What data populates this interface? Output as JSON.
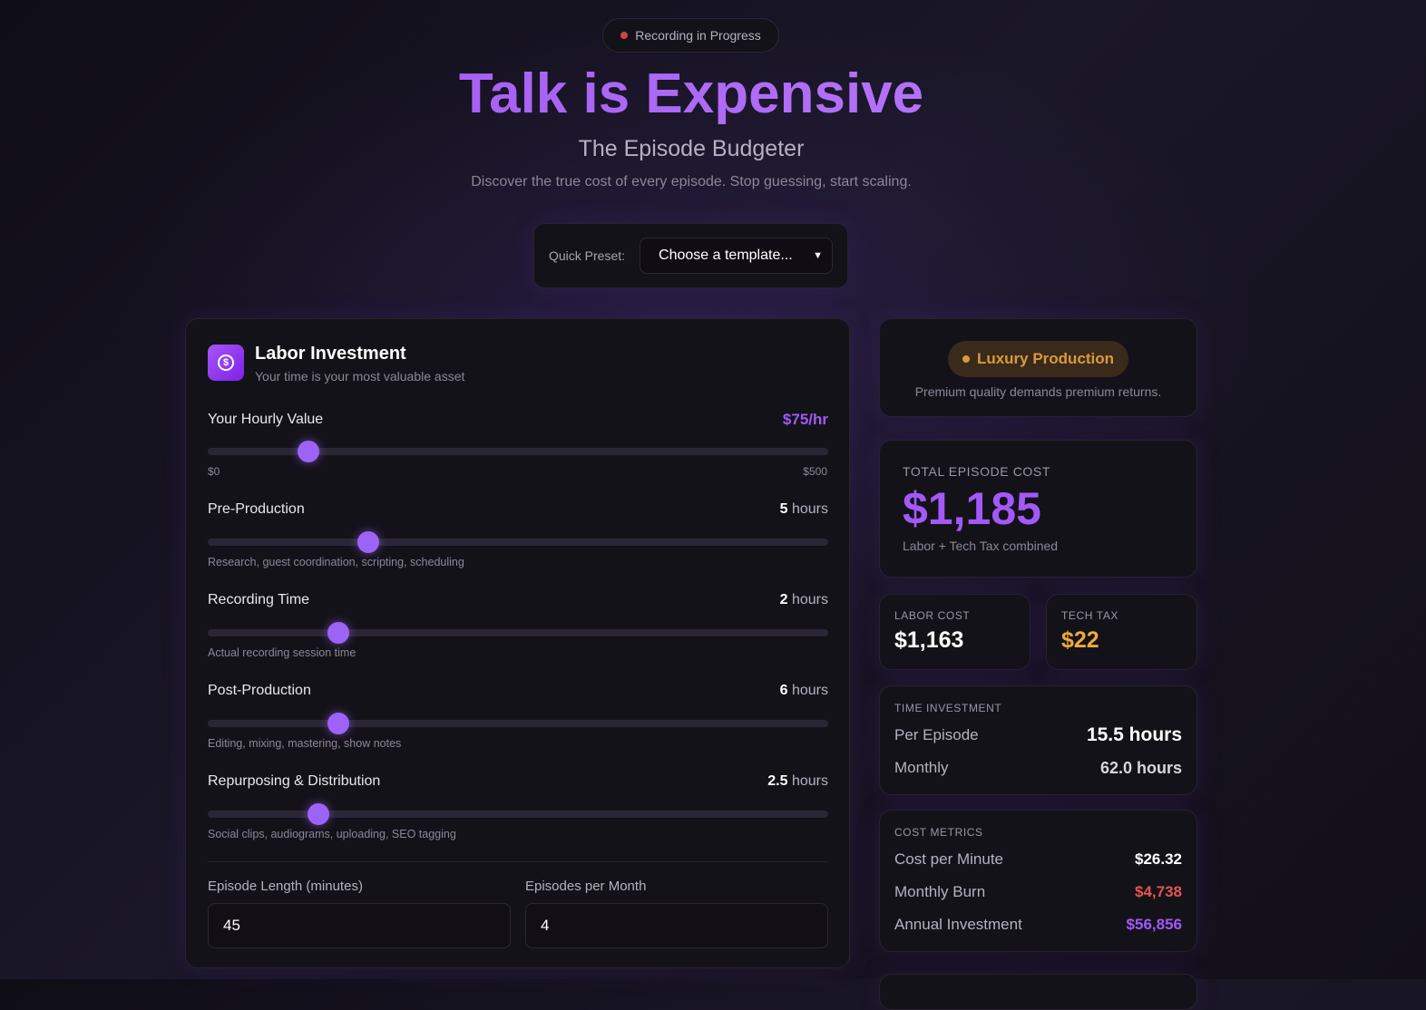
{
  "header": {
    "status": "Recording in Progress",
    "title": "Talk is Expensive",
    "subtitle": "The Episode Budgeter",
    "tagline": "Discover the true cost of every episode. Stop guessing, start scaling."
  },
  "preset": {
    "label": "Quick Preset:",
    "placeholder": "Choose a template..."
  },
  "labor": {
    "title": "Labor Investment",
    "subtitle": "Your time is your most valuable asset",
    "hourly": {
      "label": "Your Hourly Value",
      "value": 75,
      "value_label": "$75/hr",
      "min": {
        "value": 0,
        "label": "$0"
      },
      "max": {
        "value": 500,
        "label": "$500"
      }
    },
    "phases": [
      {
        "label": "Pre-Production",
        "value": 5,
        "unit": "hours",
        "min": 0,
        "max": 20,
        "hint": "Research, guest coordination, scripting, scheduling"
      },
      {
        "label": "Recording Time",
        "value": 2,
        "unit": "hours",
        "min": 0,
        "max": 10,
        "hint": "Actual recording session time"
      },
      {
        "label": "Post-Production",
        "value": 6,
        "unit": "hours",
        "min": 0,
        "max": 30,
        "hint": "Editing, mixing, mastering, show notes"
      },
      {
        "label": "Repurposing & Distribution",
        "value": 2.5,
        "unit": "hours",
        "min": 0,
        "max": 15,
        "hint": "Social clips, audiograms, uploading, SEO tagging"
      }
    ],
    "inputs": [
      {
        "label": "Episode Length (minutes)",
        "value": 45
      },
      {
        "label": "Episodes per Month",
        "value": 4
      }
    ]
  },
  "tier": {
    "badge": "Luxury Production",
    "description": "Premium quality demands premium returns."
  },
  "total": {
    "label": "TOTAL EPISODE COST",
    "value": "$1,185",
    "note": "Labor + Tech Tax combined"
  },
  "breakdown": [
    {
      "label": "LABOR COST",
      "value": "$1,163"
    },
    {
      "label": "TECH TAX",
      "value": "$22"
    }
  ],
  "time": {
    "title": "TIME INVESTMENT",
    "rows": [
      {
        "label": "Per Episode",
        "value": "15.5 hours"
      },
      {
        "label": "Monthly",
        "value": "62.0 hours"
      }
    ]
  },
  "metrics": {
    "title": "COST METRICS",
    "rows": [
      {
        "label": "Cost per Minute",
        "value": "$26.32"
      },
      {
        "label": "Monthly Burn",
        "value": "$4,738"
      },
      {
        "label": "Annual Investment",
        "value": "$56,856"
      }
    ]
  }
}
